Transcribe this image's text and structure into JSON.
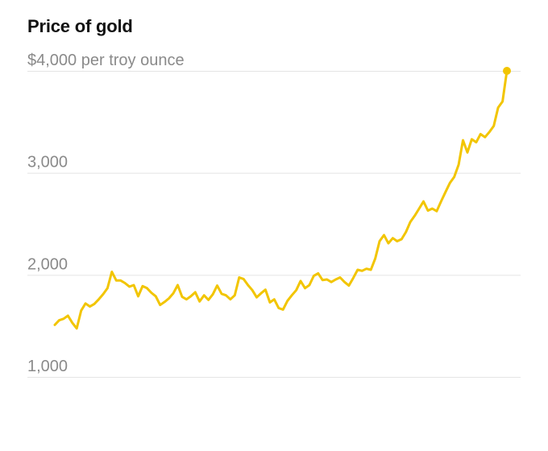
{
  "chart_data": {
    "type": "line",
    "title": "Price of gold",
    "xlabel": "",
    "ylabel": "",
    "ylim": [
      1000,
      4000
    ],
    "y_ticks": [
      {
        "value": 4000,
        "label": "$4,000 per troy ounce"
      },
      {
        "value": 3000,
        "label": "3,000"
      },
      {
        "value": 2000,
        "label": "2,000"
      },
      {
        "value": 1000,
        "label": "1,000"
      }
    ],
    "grid": true,
    "legend": "none",
    "color": "#f2c500",
    "series": [
      {
        "values": [
          1510,
          1555,
          1570,
          1600,
          1530,
          1475,
          1650,
          1720,
          1690,
          1715,
          1760,
          1810,
          1870,
          2030,
          1945,
          1945,
          1920,
          1885,
          1900,
          1790,
          1890,
          1870,
          1825,
          1790,
          1705,
          1735,
          1770,
          1820,
          1900,
          1785,
          1760,
          1790,
          1830,
          1740,
          1800,
          1755,
          1810,
          1895,
          1815,
          1800,
          1760,
          1800,
          1975,
          1960,
          1900,
          1850,
          1780,
          1820,
          1855,
          1730,
          1760,
          1675,
          1660,
          1745,
          1800,
          1850,
          1940,
          1870,
          1900,
          1990,
          2015,
          1950,
          1955,
          1930,
          1955,
          1975,
          1930,
          1895,
          1970,
          2050,
          2040,
          2060,
          2050,
          2160,
          2330,
          2390,
          2310,
          2360,
          2330,
          2350,
          2420,
          2520,
          2580,
          2650,
          2720,
          2630,
          2650,
          2625,
          2720,
          2810,
          2900,
          2960,
          3080,
          3320,
          3200,
          3330,
          3300,
          3380,
          3350,
          3400,
          3460,
          3640,
          3700,
          4000
        ]
      }
    ]
  }
}
